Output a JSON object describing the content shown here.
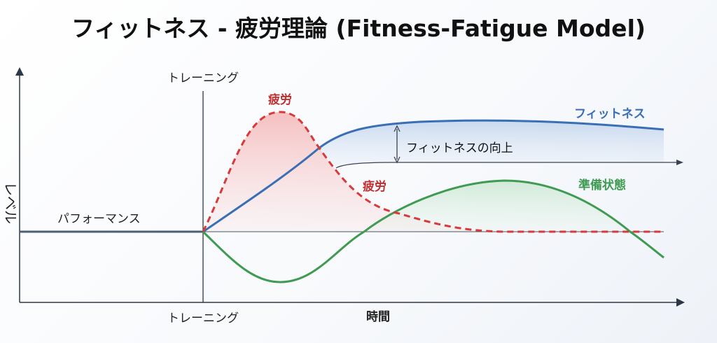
{
  "title": "フィットネス - 疲労理論 (Fitness-Fatigue Model)",
  "y_axis_label": "レベル",
  "x_axis_label": "時間",
  "training_top_label": "トレーニング",
  "training_bottom_label": "トレーニング",
  "performance_label": "パフォーマンス",
  "fatigue_peak_label": "疲労",
  "fatigue_curve_label": "疲労",
  "fitness_label": "フィットネス",
  "fitness_gain_label": "フィットネスの向上",
  "readiness_label": "準備状態",
  "colors": {
    "fitness": "#3a6fb5",
    "fatigue": "#d63a3a",
    "readiness": "#3f9a52",
    "axis": "#2d3748",
    "performance": "#4a5f78"
  }
}
